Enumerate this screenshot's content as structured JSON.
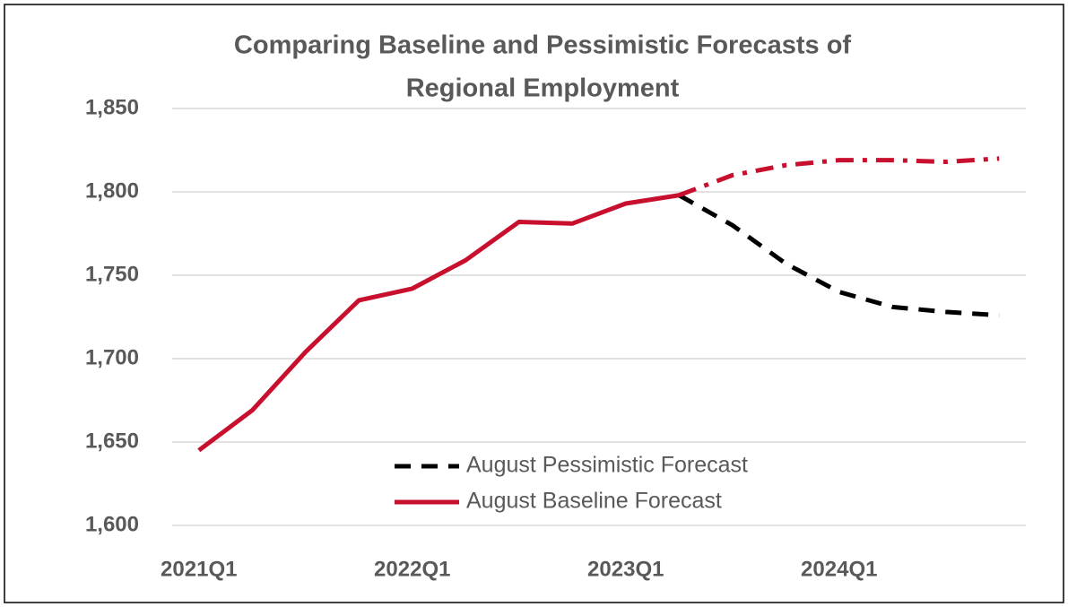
{
  "chart_data": {
    "type": "line",
    "title": [
      "Comparing  Baseline and Pessimistic Forecasts of",
      "Regional Employment"
    ],
    "categories": [
      "2021Q1",
      null,
      null,
      null,
      "2022Q1",
      null,
      null,
      null,
      "2023Q1",
      null,
      null,
      null,
      "2024Q1",
      null,
      null,
      null
    ],
    "series": [
      {
        "name": "August Pessimistic Forecast",
        "color": "#000000",
        "dash": "dash",
        "values": [
          null,
          null,
          null,
          null,
          null,
          null,
          null,
          null,
          null,
          1798,
          1780,
          1757,
          1740,
          1731,
          1728,
          1726
        ]
      },
      {
        "name": "August Baseline Forecast",
        "color": "#c8102e",
        "dash": "solid",
        "values": [
          1645,
          1669,
          1704,
          1735,
          1742,
          1759,
          1782,
          1781,
          1793,
          1798,
          null,
          null,
          null,
          null,
          null,
          null
        ]
      },
      {
        "color": "#c8102e",
        "dash": "dashdot",
        "values": [
          null,
          null,
          null,
          null,
          null,
          null,
          null,
          null,
          null,
          1798,
          1810,
          1816,
          1819,
          1819,
          1818,
          1820
        ]
      }
    ],
    "ylim": [
      1600,
      1850
    ],
    "yticks": [
      {
        "value": 1600,
        "label": "1,600"
      },
      {
        "value": 1650,
        "label": "1,650"
      },
      {
        "value": 1700,
        "label": "1,700"
      },
      {
        "value": 1750,
        "label": "1,750"
      },
      {
        "value": 1800,
        "label": "1,800"
      },
      {
        "value": 1850,
        "label": "1,850"
      }
    ],
    "grid": true,
    "legend": "bottom"
  }
}
